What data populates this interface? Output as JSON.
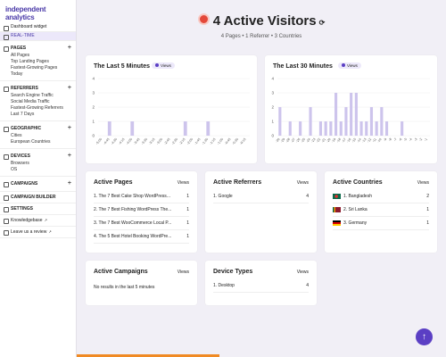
{
  "sidebar": {
    "brand": "independent analytics",
    "top": [
      "Dashboard widget",
      "REAL-TIME"
    ],
    "groups": [
      {
        "title": "PAGES",
        "links": [
          "All Pages",
          "Top Landing Pages",
          "Fastest-Growing Pages",
          "Today"
        ]
      },
      {
        "title": "REFERRERS",
        "links": [
          "Search Engine Traffic",
          "Social Media Traffic",
          "Fastest-Growing Referrers",
          "Last 7 Days"
        ]
      },
      {
        "title": "GEOGRAPHIC",
        "links": [
          "Cities",
          "European Countries"
        ]
      },
      {
        "title": "DEVICES",
        "links": [
          "Browsers",
          "OS"
        ]
      },
      {
        "title": "CAMPAIGNS",
        "links": []
      }
    ],
    "tools": [
      "CAMPAIGN BUILDER",
      "SETTINGS"
    ],
    "external": [
      "Knowledgebase",
      "Leave us a review"
    ]
  },
  "header": {
    "title": "4 Active Visitors",
    "summary": "4 Pages • 1 Referrer • 3 Countries"
  },
  "charts": [
    {
      "type": "bar",
      "title": "The Last 5 Minutes",
      "legend": "Views",
      "color": "#cdc4ec",
      "ylim": [
        0,
        4
      ],
      "yticks": [
        0,
        1,
        2,
        3,
        4
      ],
      "categories": [
        "-5:00",
        "-4:45",
        "-4:30",
        "-4:15",
        "-4:00",
        "-3:45",
        "-3:30",
        "-3:15",
        "-3:00",
        "-2:45",
        "-2:30",
        "-2:15",
        "-2:00",
        "-1:45",
        "-1:30",
        "-1:15",
        "-1:00",
        "-0:45",
        "-0:30",
        "-0:15"
      ],
      "values": [
        0,
        1,
        0,
        0,
        1,
        0,
        0,
        0,
        0,
        0,
        0,
        1,
        0,
        0,
        1,
        0,
        0,
        0,
        0,
        0
      ]
    },
    {
      "type": "bar",
      "title": "The Last 30 Minutes",
      "legend": "Views",
      "color": "#cdc4ec",
      "ylim": [
        0,
        4
      ],
      "yticks": [
        0,
        1,
        2,
        3,
        4
      ],
      "categories": [
        "-30",
        "-29",
        "-28",
        "-27",
        "-26",
        "-25",
        "-24",
        "-23",
        "-22",
        "-21",
        "-20",
        "-19",
        "-18",
        "-17",
        "-16",
        "-15",
        "-14",
        "-13",
        "-12",
        "-11",
        "-10",
        "-9",
        "-8",
        "-7",
        "-6",
        "-5",
        "-4",
        "-3",
        "-2",
        "-1"
      ],
      "values": [
        2,
        0,
        1,
        0,
        1,
        0,
        2,
        0,
        1,
        1,
        1,
        3,
        1,
        2,
        3,
        3,
        1,
        1,
        2,
        1,
        2,
        1,
        0,
        0,
        1,
        0,
        0,
        0,
        0,
        0
      ]
    }
  ],
  "tables": [
    {
      "title": "Active Pages",
      "column": "Views",
      "rows": [
        [
          "1. The 7 Best Cake Shop WordPress...",
          1
        ],
        [
          "2. The 7 Best Fishing WordPress The...",
          1
        ],
        [
          "3. The 7 Best WooCommerce Local P...",
          1
        ],
        [
          "4. The 5 Best Hotel Booking WordPre...",
          1
        ]
      ]
    },
    {
      "title": "Active Referrers",
      "column": "Views",
      "rows": [
        [
          "1. Google",
          4
        ]
      ]
    },
    {
      "title": "Active Countries",
      "column": "Views",
      "rows": [
        [
          "1. Bangladesh",
          2
        ],
        [
          "2. Sri Lanka",
          1
        ],
        [
          "3. Germany",
          1
        ]
      ]
    },
    {
      "title": "Active Campaigns",
      "column": "Views",
      "message": "No results in the last 5 minutes"
    },
    {
      "title": "Device Types",
      "column": "Views",
      "rows": [
        [
          "1. Desktop",
          4
        ]
      ]
    }
  ]
}
